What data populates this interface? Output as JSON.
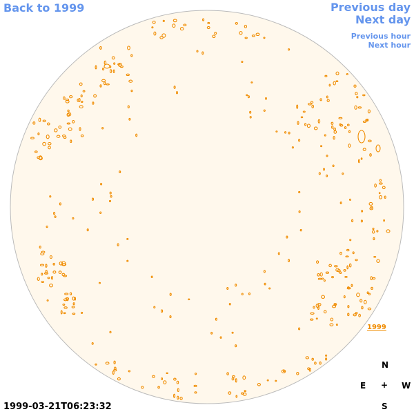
{
  "nav": {
    "back": "Back to 1999",
    "previous_day": "Previous day",
    "next_day": "Next day",
    "previous_hour": "Previous hour",
    "next_hour": "Next hour"
  },
  "map": {
    "year_link": "1999",
    "timestamp": "1999-03-21T06:23:32",
    "disk_fill": "#fff8ec",
    "disk_stroke": "#bbbbbb",
    "feature_color": "#f08c00"
  },
  "compass": {
    "north": "N",
    "south": "S",
    "east": "E",
    "west": "W",
    "center": "+"
  }
}
